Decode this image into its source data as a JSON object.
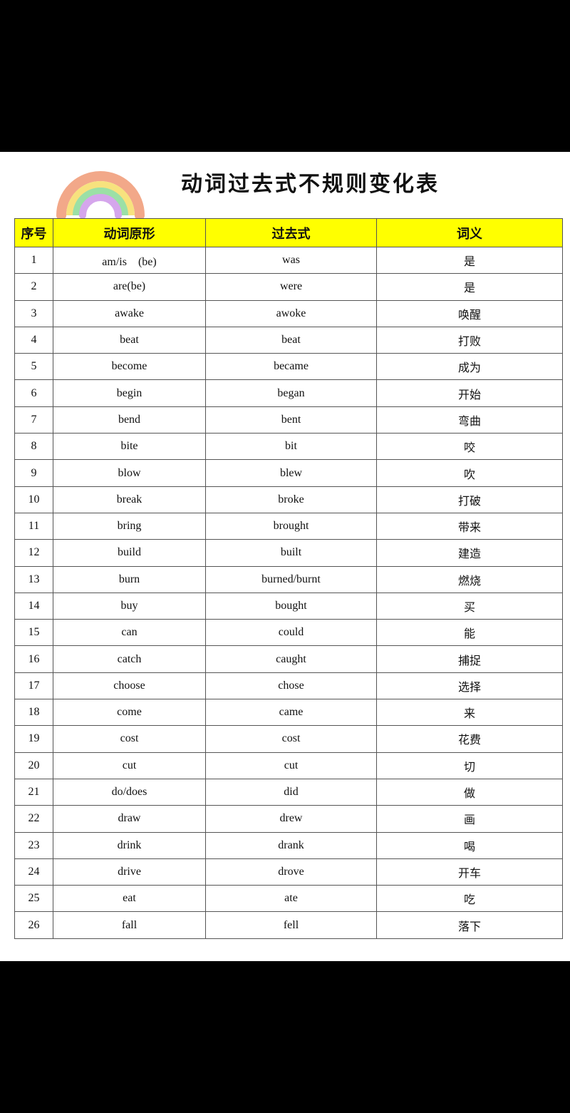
{
  "title": "动词过去式不规则变化表",
  "headers": [
    "序号",
    "动词原形",
    "过去式",
    "词义"
  ],
  "rows": [
    [
      "1",
      "am/is　(be)",
      "was",
      "是"
    ],
    [
      "2",
      "are(be)",
      "were",
      "是"
    ],
    [
      "3",
      "awake",
      "awoke",
      "唤醒"
    ],
    [
      "4",
      "beat",
      "beat",
      "打败"
    ],
    [
      "5",
      "become",
      "became",
      "成为"
    ],
    [
      "6",
      "begin",
      "began",
      "开始"
    ],
    [
      "7",
      "bend",
      "bent",
      "弯曲"
    ],
    [
      "8",
      "bite",
      "bit",
      "咬"
    ],
    [
      "9",
      "blow",
      "blew",
      "吹"
    ],
    [
      "10",
      "break",
      "broke",
      "打破"
    ],
    [
      "11",
      "bring",
      "brought",
      "带来"
    ],
    [
      "12",
      "build",
      "built",
      "建造"
    ],
    [
      "13",
      "burn",
      "burned/burnt",
      "燃烧"
    ],
    [
      "14",
      "buy",
      "bought",
      "买"
    ],
    [
      "15",
      "can",
      "could",
      "能"
    ],
    [
      "16",
      "catch",
      "caught",
      "捕捉"
    ],
    [
      "17",
      "choose",
      "chose",
      "选择"
    ],
    [
      "18",
      "come",
      "came",
      "来"
    ],
    [
      "19",
      "cost",
      "cost",
      "花费"
    ],
    [
      "20",
      "cut",
      "cut",
      "切"
    ],
    [
      "21",
      "do/does",
      "did",
      "做"
    ],
    [
      "22",
      "draw",
      "drew",
      "画"
    ],
    [
      "23",
      "drink",
      "drank",
      "喝"
    ],
    [
      "24",
      "drive",
      "drove",
      "开车"
    ],
    [
      "25",
      "eat",
      "ate",
      "吃"
    ],
    [
      "26",
      "fall",
      "fell",
      "落下"
    ]
  ],
  "colors": {
    "header_bg": "#ffff00"
  }
}
